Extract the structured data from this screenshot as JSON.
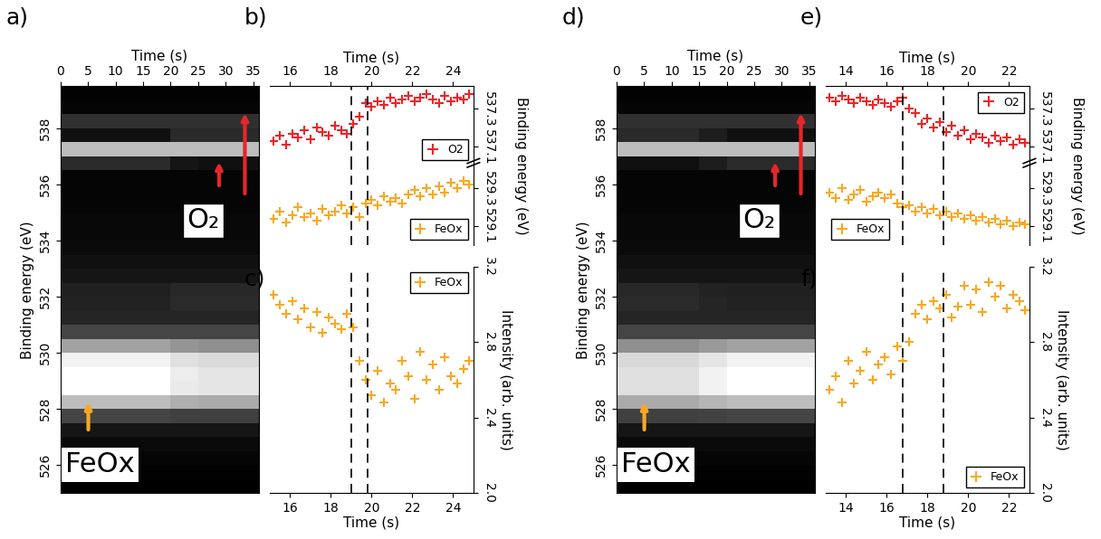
{
  "chart_data": [
    {
      "type": "heatmap",
      "label": "a)",
      "xlabel": "Time (s)",
      "ylabel": "Binding energy (eV)",
      "xlim": [
        0,
        36
      ],
      "xticks": [
        0,
        5,
        10,
        15,
        20,
        25,
        30,
        35
      ],
      "ylim": [
        525,
        539.5
      ],
      "yticks": [
        526,
        528,
        530,
        532,
        534,
        536,
        538
      ],
      "x_edges": [
        0,
        5,
        10,
        15,
        20,
        25,
        30,
        36
      ],
      "y_edges": [
        525,
        525.5,
        526,
        526.5,
        527,
        527.5,
        528,
        528.5,
        529,
        529.5,
        530,
        530.5,
        531,
        531.5,
        532,
        532.5,
        533,
        533.5,
        534,
        534.5,
        535,
        535.5,
        536,
        536.5,
        537,
        537.5,
        538,
        538.5,
        539,
        539.5
      ],
      "cells": [
        [
          0.04,
          0.04,
          0.04,
          0.04,
          0.04,
          0.04,
          0.04
        ],
        [
          0.05,
          0.05,
          0.05,
          0.05,
          0.05,
          0.05,
          0.05
        ],
        [
          0.06,
          0.06,
          0.06,
          0.06,
          0.06,
          0.06,
          0.06
        ],
        [
          0.08,
          0.08,
          0.08,
          0.08,
          0.08,
          0.08,
          0.08
        ],
        [
          0.12,
          0.12,
          0.12,
          0.12,
          0.12,
          0.12,
          0.12
        ],
        [
          0.3,
          0.3,
          0.3,
          0.3,
          0.28,
          0.28,
          0.28
        ],
        [
          0.75,
          0.75,
          0.75,
          0.75,
          0.7,
          0.68,
          0.68
        ],
        [
          1,
          1,
          1,
          1,
          0.92,
          0.9,
          0.9
        ],
        [
          1,
          1,
          1,
          1,
          0.93,
          0.9,
          0.9
        ],
        [
          0.95,
          0.95,
          0.95,
          0.95,
          0.88,
          0.86,
          0.86
        ],
        [
          0.65,
          0.65,
          0.65,
          0.65,
          0.6,
          0.58,
          0.58
        ],
        [
          0.3,
          0.3,
          0.3,
          0.3,
          0.3,
          0.3,
          0.3
        ],
        [
          0.18,
          0.18,
          0.18,
          0.18,
          0.18,
          0.18,
          0.18
        ],
        [
          0.17,
          0.17,
          0.17,
          0.17,
          0.2,
          0.2,
          0.2
        ],
        [
          0.16,
          0.16,
          0.16,
          0.16,
          0.19,
          0.19,
          0.19
        ],
        [
          0.12,
          0.12,
          0.12,
          0.12,
          0.12,
          0.12,
          0.12
        ],
        [
          0.1,
          0.1,
          0.1,
          0.1,
          0.1,
          0.1,
          0.1
        ],
        [
          0.08,
          0.08,
          0.08,
          0.08,
          0.08,
          0.08,
          0.08
        ],
        [
          0.07,
          0.07,
          0.07,
          0.07,
          0.07,
          0.07,
          0.07
        ],
        [
          0.07,
          0.07,
          0.07,
          0.07,
          0.07,
          0.07,
          0.07
        ],
        [
          0.06,
          0.06,
          0.06,
          0.06,
          0.06,
          0.06,
          0.06
        ],
        [
          0.06,
          0.06,
          0.06,
          0.06,
          0.06,
          0.06,
          0.06
        ],
        [
          0.06,
          0.06,
          0.06,
          0.06,
          0.06,
          0.06,
          0.06
        ],
        [
          0.2,
          0.2,
          0.2,
          0.2,
          0.12,
          0.1,
          0.1
        ],
        [
          0.75,
          0.75,
          0.75,
          0.75,
          0.75,
          0.75,
          0.75
        ],
        [
          0.1,
          0.1,
          0.1,
          0.1,
          0.2,
          0.2,
          0.2
        ],
        [
          0.22,
          0.22,
          0.22,
          0.22,
          0.22,
          0.22,
          0.22
        ],
        [
          0.06,
          0.06,
          0.06,
          0.06,
          0.06,
          0.06,
          0.06
        ],
        [
          0.05,
          0.05,
          0.05,
          0.05,
          0.05,
          0.05,
          0.05
        ]
      ],
      "annotations": [
        {
          "text": "O₂",
          "color": "#e8262a"
        },
        {
          "text": "FeOx",
          "color": "#f7a823"
        }
      ]
    },
    {
      "type": "scatter",
      "label": "b)",
      "xlabel": "Time (s)",
      "ylabel": "Binding energy (eV)",
      "xlim": [
        15,
        25
      ],
      "xticks": [
        16,
        18,
        20,
        22,
        24
      ],
      "vlines": [
        19,
        19.8
      ],
      "x": [
        15.2,
        15.5,
        15.8,
        16.1,
        16.4,
        16.7,
        17.0,
        17.3,
        17.6,
        17.9,
        18.2,
        18.5,
        18.8,
        19.1,
        19.4,
        19.7,
        20.0,
        20.3,
        20.6,
        20.9,
        21.2,
        21.5,
        21.8,
        22.1,
        22.4,
        22.7,
        23.0,
        23.3,
        23.6,
        23.9,
        24.2,
        24.5,
        24.8
      ],
      "series": [
        {
          "name": "O2",
          "color": "#e8262a",
          "marker": "+",
          "legend": "lower right",
          "ylim": [
            537.0,
            537.42
          ],
          "yticks": [
            537.1,
            537.3
          ],
          "values": [
            537.13,
            537.16,
            537.11,
            537.17,
            537.15,
            537.19,
            537.14,
            537.2,
            537.18,
            537.16,
            537.21,
            537.19,
            537.17,
            537.22,
            537.26,
            537.33,
            537.31,
            537.34,
            537.32,
            537.36,
            537.33,
            537.35,
            537.37,
            537.34,
            537.36,
            537.38,
            537.35,
            537.33,
            537.37,
            537.34,
            537.36,
            537.35,
            537.38
          ]
        },
        {
          "name": "FeOx",
          "color": "#f7a823",
          "marker": "+",
          "legend": "lower right",
          "ylim": [
            529.0,
            529.42
          ],
          "yticks": [
            529.1,
            529.3
          ],
          "values": [
            529.14,
            529.18,
            529.12,
            529.16,
            529.2,
            529.15,
            529.17,
            529.13,
            529.19,
            529.16,
            529.18,
            529.21,
            529.17,
            529.2,
            529.15,
            529.22,
            529.24,
            529.21,
            529.26,
            529.23,
            529.25,
            529.22,
            529.27,
            529.29,
            529.26,
            529.3,
            529.27,
            529.31,
            529.28,
            529.33,
            529.3,
            529.34,
            529.32
          ]
        }
      ]
    },
    {
      "type": "scatter",
      "label": "c)",
      "xlabel": "Time (s)",
      "ylabel": "Intensity (arb. units)",
      "xlim": [
        15,
        25
      ],
      "xticks": [
        16,
        18,
        20,
        22,
        24
      ],
      "vlines": [
        19,
        19.8
      ],
      "ylim": [
        2.0,
        3.2
      ],
      "yticks": [
        {
          "value": 2.0,
          "label": "2.0"
        },
        {
          "value": 2.4,
          "label": "2.4"
        },
        {
          "value": 2.8,
          "label": "2.8"
        },
        {
          "value": 3.2,
          "label": "3.2"
        }
      ],
      "x": [
        15.2,
        15.5,
        15.8,
        16.1,
        16.4,
        16.7,
        17.0,
        17.3,
        17.6,
        17.9,
        18.2,
        18.5,
        18.8,
        19.1,
        19.4,
        19.7,
        20.0,
        20.3,
        20.6,
        20.9,
        21.2,
        21.5,
        21.8,
        22.1,
        22.4,
        22.7,
        23.0,
        23.3,
        23.6,
        23.9,
        24.2,
        24.5,
        24.8
      ],
      "series": [
        {
          "name": "FeOx",
          "color": "#f7a823",
          "marker": "+",
          "legend": "upper right",
          "values": [
            3.05,
            3.0,
            2.95,
            3.02,
            2.92,
            2.98,
            2.88,
            2.96,
            2.85,
            2.93,
            2.9,
            2.87,
            2.95,
            2.88,
            2.7,
            2.6,
            2.52,
            2.65,
            2.48,
            2.58,
            2.55,
            2.7,
            2.62,
            2.5,
            2.75,
            2.6,
            2.68,
            2.55,
            2.72,
            2.62,
            2.58,
            2.66,
            2.7
          ]
        }
      ]
    },
    {
      "type": "heatmap",
      "label": "d)",
      "xlabel": "Time (s)",
      "ylabel": "Binding energy (eV)",
      "xlim": [
        0,
        36
      ],
      "xticks": [
        0,
        5,
        10,
        15,
        20,
        25,
        30,
        35
      ],
      "ylim": [
        525,
        539.5
      ],
      "yticks": [
        526,
        528,
        530,
        532,
        534,
        536,
        538
      ],
      "x_edges": [
        0,
        5,
        10,
        15,
        20,
        25,
        30,
        36
      ],
      "y_edges": [
        525,
        525.5,
        526,
        526.5,
        527,
        527.5,
        528,
        528.5,
        529,
        529.5,
        530,
        530.5,
        531,
        531.5,
        532,
        532.5,
        533,
        533.5,
        534,
        534.5,
        535,
        535.5,
        536,
        536.5,
        537,
        537.5,
        538,
        538.5,
        539,
        539.5
      ],
      "cells": [
        [
          0.04,
          0.04,
          0.04,
          0.04,
          0.04,
          0.04,
          0.04
        ],
        [
          0.05,
          0.05,
          0.05,
          0.05,
          0.05,
          0.05,
          0.05
        ],
        [
          0.06,
          0.06,
          0.06,
          0.06,
          0.06,
          0.06,
          0.06
        ],
        [
          0.08,
          0.08,
          0.08,
          0.08,
          0.08,
          0.08,
          0.08
        ],
        [
          0.12,
          0.12,
          0.12,
          0.12,
          0.12,
          0.12,
          0.12
        ],
        [
          0.28,
          0.28,
          0.28,
          0.29,
          0.3,
          0.3,
          0.3
        ],
        [
          0.68,
          0.68,
          0.68,
          0.72,
          0.75,
          0.75,
          0.75
        ],
        [
          0.88,
          0.88,
          0.88,
          0.95,
          1,
          1,
          1
        ],
        [
          0.88,
          0.88,
          0.88,
          0.95,
          1,
          1,
          1
        ],
        [
          0.85,
          0.85,
          0.85,
          0.9,
          0.95,
          0.95,
          0.95
        ],
        [
          0.58,
          0.58,
          0.58,
          0.62,
          0.65,
          0.65,
          0.65
        ],
        [
          0.3,
          0.3,
          0.3,
          0.3,
          0.3,
          0.3,
          0.3
        ],
        [
          0.18,
          0.18,
          0.18,
          0.18,
          0.18,
          0.18,
          0.18
        ],
        [
          0.2,
          0.2,
          0.2,
          0.18,
          0.17,
          0.17,
          0.17
        ],
        [
          0.19,
          0.19,
          0.19,
          0.17,
          0.16,
          0.16,
          0.16
        ],
        [
          0.12,
          0.12,
          0.12,
          0.12,
          0.12,
          0.12,
          0.12
        ],
        [
          0.1,
          0.1,
          0.1,
          0.1,
          0.1,
          0.1,
          0.1
        ],
        [
          0.08,
          0.08,
          0.08,
          0.08,
          0.08,
          0.08,
          0.08
        ],
        [
          0.07,
          0.07,
          0.07,
          0.07,
          0.07,
          0.07,
          0.07
        ],
        [
          0.07,
          0.07,
          0.07,
          0.07,
          0.07,
          0.07,
          0.07
        ],
        [
          0.06,
          0.06,
          0.06,
          0.06,
          0.06,
          0.06,
          0.06
        ],
        [
          0.06,
          0.06,
          0.06,
          0.06,
          0.06,
          0.06,
          0.06
        ],
        [
          0.06,
          0.06,
          0.06,
          0.06,
          0.06,
          0.06,
          0.06
        ],
        [
          0.1,
          0.1,
          0.1,
          0.15,
          0.2,
          0.2,
          0.2
        ],
        [
          0.75,
          0.75,
          0.75,
          0.75,
          0.75,
          0.75,
          0.75
        ],
        [
          0.2,
          0.2,
          0.2,
          0.15,
          0.1,
          0.1,
          0.1
        ],
        [
          0.22,
          0.22,
          0.22,
          0.22,
          0.22,
          0.22,
          0.22
        ],
        [
          0.06,
          0.06,
          0.06,
          0.06,
          0.06,
          0.06,
          0.06
        ],
        [
          0.05,
          0.05,
          0.05,
          0.05,
          0.05,
          0.05,
          0.05
        ]
      ],
      "annotations": [
        {
          "text": "O₂",
          "color": "#e8262a"
        },
        {
          "text": "FeOx",
          "color": "#f7a823"
        }
      ]
    },
    {
      "type": "scatter",
      "label": "e)",
      "xlabel": "Time (s)",
      "ylabel": "Binding energy (eV)",
      "xlim": [
        13,
        23
      ],
      "xticks": [
        14,
        16,
        18,
        20,
        22
      ],
      "vlines": [
        16.8,
        18.8
      ],
      "x": [
        13.2,
        13.5,
        13.8,
        14.1,
        14.4,
        14.7,
        15.0,
        15.3,
        15.6,
        15.9,
        16.2,
        16.5,
        16.8,
        17.1,
        17.4,
        17.7,
        18.0,
        18.3,
        18.6,
        18.9,
        19.2,
        19.5,
        19.8,
        20.1,
        20.4,
        20.7,
        21.0,
        21.3,
        21.6,
        21.9,
        22.2,
        22.5,
        22.8
      ],
      "series": [
        {
          "name": "O2",
          "color": "#e8262a",
          "marker": "+",
          "legend": "upper right",
          "ylim": [
            537.0,
            537.42
          ],
          "yticks": [
            537.1,
            537.3
          ],
          "values": [
            537.36,
            537.34,
            537.37,
            537.35,
            537.33,
            537.36,
            537.34,
            537.32,
            537.35,
            537.33,
            537.31,
            537.34,
            537.36,
            537.3,
            537.28,
            537.22,
            537.25,
            537.2,
            537.23,
            537.18,
            537.21,
            537.16,
            537.19,
            537.14,
            537.17,
            537.15,
            537.12,
            537.16,
            537.13,
            537.15,
            537.11,
            537.14,
            537.12
          ]
        },
        {
          "name": "FeOx",
          "color": "#f7a823",
          "marker": "+",
          "legend": "lower left",
          "ylim": [
            529.0,
            529.42
          ],
          "yticks": [
            529.1,
            529.3
          ],
          "values": [
            529.28,
            529.25,
            529.3,
            529.24,
            529.27,
            529.29,
            529.23,
            529.26,
            529.28,
            529.25,
            529.27,
            529.22,
            529.2,
            529.21,
            529.18,
            529.2,
            529.17,
            529.19,
            529.16,
            529.18,
            529.15,
            529.17,
            529.14,
            529.16,
            529.13,
            529.15,
            529.12,
            529.14,
            529.11,
            529.13,
            529.1,
            529.12,
            529.11
          ]
        }
      ]
    },
    {
      "type": "scatter",
      "label": "f)",
      "xlabel": "Time (s)",
      "ylabel": "Intensity (arb. units)",
      "xlim": [
        13,
        23
      ],
      "xticks": [
        14,
        16,
        18,
        20,
        22
      ],
      "vlines": [
        16.8,
        18.8
      ],
      "ylim": [
        2.0,
        3.2
      ],
      "yticks": [
        {
          "value": 2.0,
          "label": "2.0"
        },
        {
          "value": 2.4,
          "label": "2.4"
        },
        {
          "value": 2.8,
          "label": "2.8"
        },
        {
          "value": 3.2,
          "label": "3.2"
        }
      ],
      "x": [
        13.2,
        13.5,
        13.8,
        14.1,
        14.4,
        14.7,
        15.0,
        15.3,
        15.6,
        15.9,
        16.2,
        16.5,
        16.8,
        17.1,
        17.4,
        17.7,
        18.0,
        18.3,
        18.6,
        18.9,
        19.2,
        19.5,
        19.8,
        20.1,
        20.4,
        20.7,
        21.0,
        21.3,
        21.6,
        21.9,
        22.2,
        22.5,
        22.8
      ],
      "series": [
        {
          "name": "FeOx",
          "color": "#f7a823",
          "marker": "+",
          "legend": "lower right",
          "values": [
            2.55,
            2.62,
            2.48,
            2.7,
            2.58,
            2.65,
            2.75,
            2.6,
            2.68,
            2.72,
            2.63,
            2.78,
            2.7,
            2.8,
            2.95,
            3.0,
            2.92,
            3.02,
            2.98,
            3.05,
            2.93,
            2.99,
            3.1,
            3.0,
            3.08,
            2.96,
            3.12,
            3.04,
            3.1,
            2.98,
            3.05,
            3.02,
            2.97
          ]
        }
      ]
    }
  ]
}
